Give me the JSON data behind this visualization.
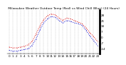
{
  "title": " Milwaukee Weather Outdoor Temp (Red) vs Wind Chill (Blue) (24 Hours)",
  "hours": [
    0,
    1,
    2,
    3,
    4,
    5,
    6,
    7,
    8,
    9,
    10,
    11,
    12,
    13,
    14,
    15,
    16,
    17,
    18,
    19,
    20,
    21,
    22,
    23
  ],
  "temp_red": [
    -12,
    -13,
    -13,
    -12,
    -11,
    -9,
    -5,
    4,
    14,
    22,
    27,
    29,
    28,
    24,
    21,
    24,
    23,
    21,
    19,
    17,
    12,
    6,
    1,
    -5
  ],
  "wind_chill_blue": [
    -16,
    -17,
    -17,
    -16,
    -15,
    -14,
    -10,
    -2,
    9,
    18,
    23,
    26,
    25,
    21,
    18,
    21,
    20,
    18,
    17,
    15,
    9,
    2,
    -4,
    -10
  ],
  "bg_color": "#ffffff",
  "red_color": "#dd0000",
  "blue_color": "#0000cc",
  "grid_color": "#aaaaaa",
  "ylim": [
    -20,
    34
  ],
  "yticks": [
    -14,
    -7,
    0,
    7,
    14,
    21,
    28
  ],
  "ytick_labels": [
    "-14",
    "-7",
    "0",
    "7",
    "14",
    "21",
    "28"
  ],
  "xticks": [
    0,
    1,
    2,
    3,
    4,
    5,
    6,
    7,
    8,
    9,
    10,
    11,
    12,
    13,
    14,
    15,
    16,
    17,
    18,
    19,
    20,
    21,
    22,
    23
  ],
  "title_fontsize": 3.2,
  "tick_fontsize": 3.0,
  "line_width": 0.7,
  "marker_size": 0.8
}
